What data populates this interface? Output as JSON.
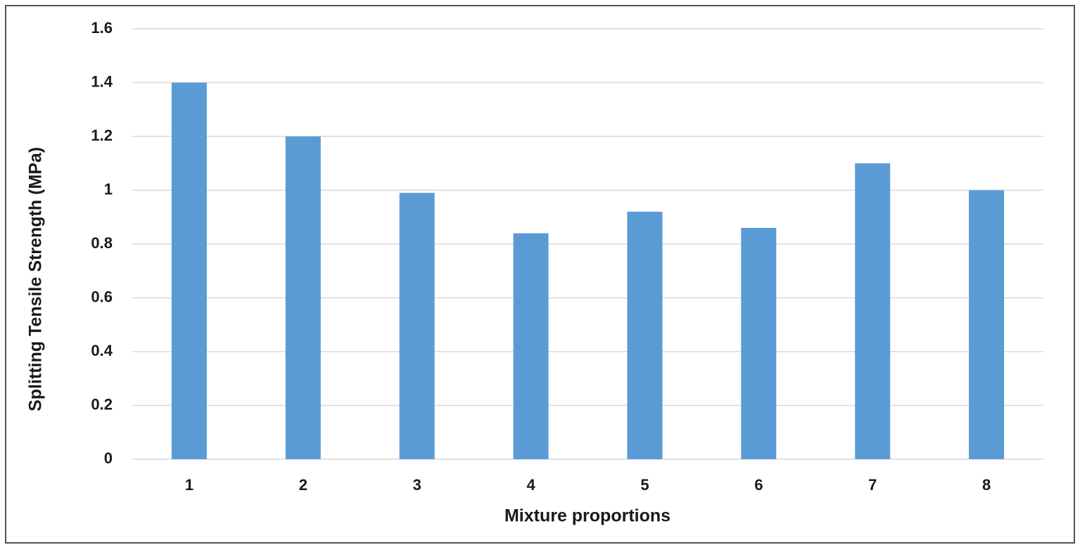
{
  "chart_data": {
    "type": "bar",
    "x_label": "Mixture proportions",
    "y_label": "Splitting Tensile Strength (MPa)",
    "categories": [
      "1",
      "2",
      "3",
      "4",
      "5",
      "6",
      "7",
      "8"
    ],
    "values": [
      1.4,
      1.2,
      0.99,
      0.84,
      0.92,
      0.86,
      1.1,
      1.0
    ],
    "color": "#5b9bd5",
    "ylim": [
      0,
      1.6
    ],
    "yticks": [
      0,
      0.2,
      0.4,
      0.6,
      0.8,
      1,
      1.2,
      1.4,
      1.6
    ],
    "grid": true
  }
}
